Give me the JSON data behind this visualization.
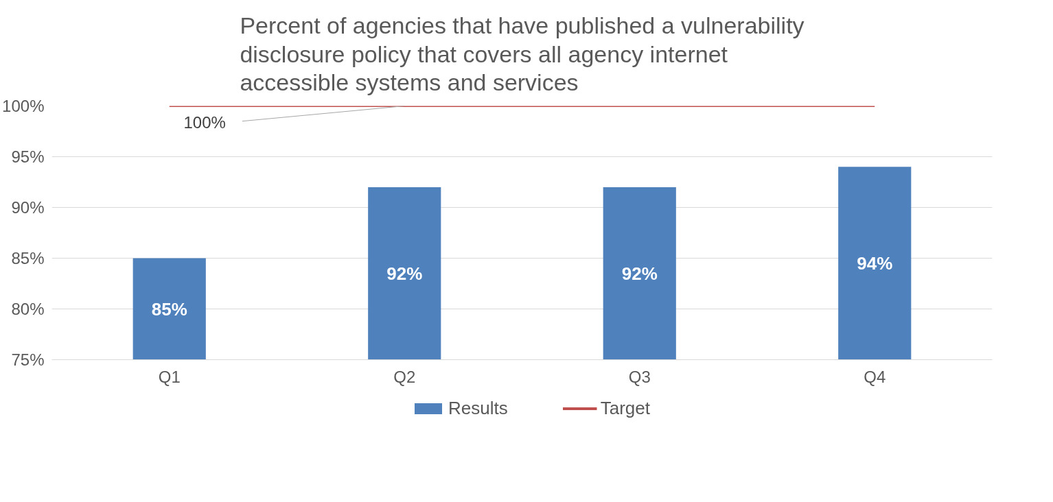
{
  "chart_data": {
    "type": "bar",
    "title": "Percent of agencies that have published a vulnerability disclosure policy that covers all agency internet accessible systems and services",
    "categories": [
      "Q1",
      "Q2",
      "Q3",
      "Q4"
    ],
    "series": [
      {
        "name": "Results",
        "color": "#4f81bd",
        "values": [
          85,
          92,
          92,
          94
        ],
        "value_labels": [
          "85%",
          "92%",
          "92%",
          "94%"
        ]
      },
      {
        "name": "Target",
        "type": "line",
        "color": "#c0504d",
        "values": [
          100,
          100,
          100,
          100
        ]
      }
    ],
    "annotations": [
      {
        "text": "100%",
        "x": "Q2",
        "y": 100
      }
    ],
    "ylim": [
      75,
      100
    ],
    "yticks": [
      {
        "value": 75,
        "label": "75%"
      },
      {
        "value": 80,
        "label": "80%"
      },
      {
        "value": 85,
        "label": "85%"
      },
      {
        "value": 90,
        "label": "90%"
      },
      {
        "value": 95,
        "label": "95%"
      },
      {
        "value": 100,
        "label": "100%"
      }
    ],
    "grid": "y",
    "legend": "bottom"
  }
}
